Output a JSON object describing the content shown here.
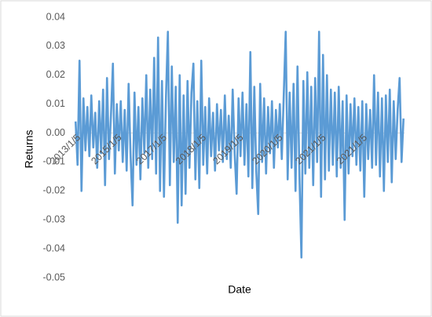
{
  "chart_data": {
    "type": "line",
    "y_label": "Returns",
    "x_label": "Date",
    "color": "#5b9bd5",
    "ylim": [
      -0.05,
      0.04
    ],
    "yticks": [
      -0.05,
      -0.04,
      -0.03,
      -0.02,
      -0.01,
      {
        "value": 0,
        "label": "0.00"
      },
      0.01,
      0.02,
      0.03,
      0.04
    ],
    "categories": [
      null,
      "2013/1/5",
      null,
      null,
      null,
      null,
      null,
      null,
      null,
      null,
      null,
      null,
      null,
      null,
      null,
      null,
      null,
      null,
      null,
      null,
      null,
      null,
      "2015/1/5",
      null,
      null,
      null,
      null,
      null,
      null,
      null,
      null,
      null,
      null,
      null,
      null,
      null,
      null,
      null,
      null,
      null,
      null,
      null,
      null,
      null,
      null,
      "2017/1/5",
      null,
      null,
      null,
      null,
      null,
      null,
      null,
      null,
      null,
      null,
      null,
      null,
      null,
      null,
      null,
      null,
      null,
      null,
      null,
      "2018/1/5",
      null,
      null,
      null,
      null,
      null,
      null,
      null,
      null,
      null,
      null,
      null,
      null,
      null,
      null,
      null,
      null,
      null,
      null,
      "2019/1/5",
      null,
      null,
      null,
      null,
      null,
      null,
      null,
      null,
      null,
      null,
      null,
      null,
      null,
      null,
      null,
      null,
      null,
      null,
      null,
      "2020/1/5",
      null,
      null,
      null,
      null,
      null,
      null,
      null,
      null,
      null,
      null,
      null,
      null,
      null,
      null,
      null,
      null,
      null,
      null,
      null,
      null,
      null,
      "2021/1/5",
      null,
      null,
      null,
      null,
      null,
      null,
      null,
      null,
      null,
      null,
      null,
      null,
      null,
      null,
      null,
      null,
      null,
      null,
      null,
      null,
      "2021/1/5",
      null,
      null,
      null,
      null,
      null,
      null,
      null,
      null,
      null,
      null,
      null,
      null,
      null,
      null,
      null,
      null,
      null,
      null,
      null,
      null
    ],
    "values": [
      0.004,
      -0.011,
      0.025,
      -0.02,
      0.012,
      -0.006,
      0.009,
      -0.008,
      0.013,
      -0.005,
      0.007,
      -0.012,
      0.011,
      -0.007,
      0.015,
      -0.018,
      0.019,
      -0.009,
      0.006,
      0.024,
      -0.014,
      0.01,
      -0.006,
      0.011,
      -0.01,
      0.008,
      -0.013,
      0.017,
      -0.008,
      -0.025,
      0.014,
      -0.011,
      0.009,
      -0.016,
      0.012,
      -0.007,
      0.02,
      -0.012,
      0.015,
      -0.009,
      0.026,
      -0.014,
      0.033,
      -0.02,
      0.018,
      -0.022,
      0.012,
      0.035,
      -0.018,
      0.023,
      -0.01,
      0.016,
      -0.031,
      0.02,
      -0.025,
      0.013,
      -0.021,
      0.018,
      -0.012,
      0.014,
      0.024,
      -0.016,
      0.011,
      -0.019,
      0.025,
      -0.011,
      0.009,
      -0.014,
      0.012,
      -0.008,
      0.007,
      -0.013,
      0.01,
      -0.006,
      0.008,
      -0.01,
      0.013,
      -0.009,
      0.006,
      -0.012,
      0.015,
      -0.007,
      -0.021,
      0.012,
      -0.008,
      0.014,
      -0.011,
      0.01,
      -0.015,
      0.028,
      -0.019,
      0.016,
      -0.013,
      -0.028,
      0.017,
      -0.01,
      0.012,
      -0.014,
      0.009,
      -0.007,
      0.011,
      -0.012,
      0.008,
      -0.005,
      0.01,
      -0.009,
      0.013,
      0.035,
      -0.016,
      0.014,
      -0.012,
      0.017,
      -0.02,
      0.023,
      -0.015,
      -0.043,
      0.018,
      -0.014,
      0.021,
      -0.012,
      0.016,
      -0.018,
      0.019,
      -0.01,
      0.035,
      -0.022,
      0.027,
      -0.016,
      0.02,
      -0.013,
      0.015,
      -0.011,
      0.014,
      -0.015,
      0.016,
      -0.012,
      0.011,
      -0.03,
      0.013,
      -0.014,
      0.01,
      -0.008,
      0.012,
      -0.011,
      0.009,
      -0.013,
      0.011,
      -0.022,
      0.01,
      -0.009,
      0.008,
      -0.012,
      0.02,
      -0.011,
      0.014,
      -0.015,
      0.012,
      -0.02,
      0.013,
      -0.01,
      0.015,
      -0.017,
      0.011,
      -0.009,
      0.008,
      0.019,
      -0.01,
      0.005
    ]
  }
}
